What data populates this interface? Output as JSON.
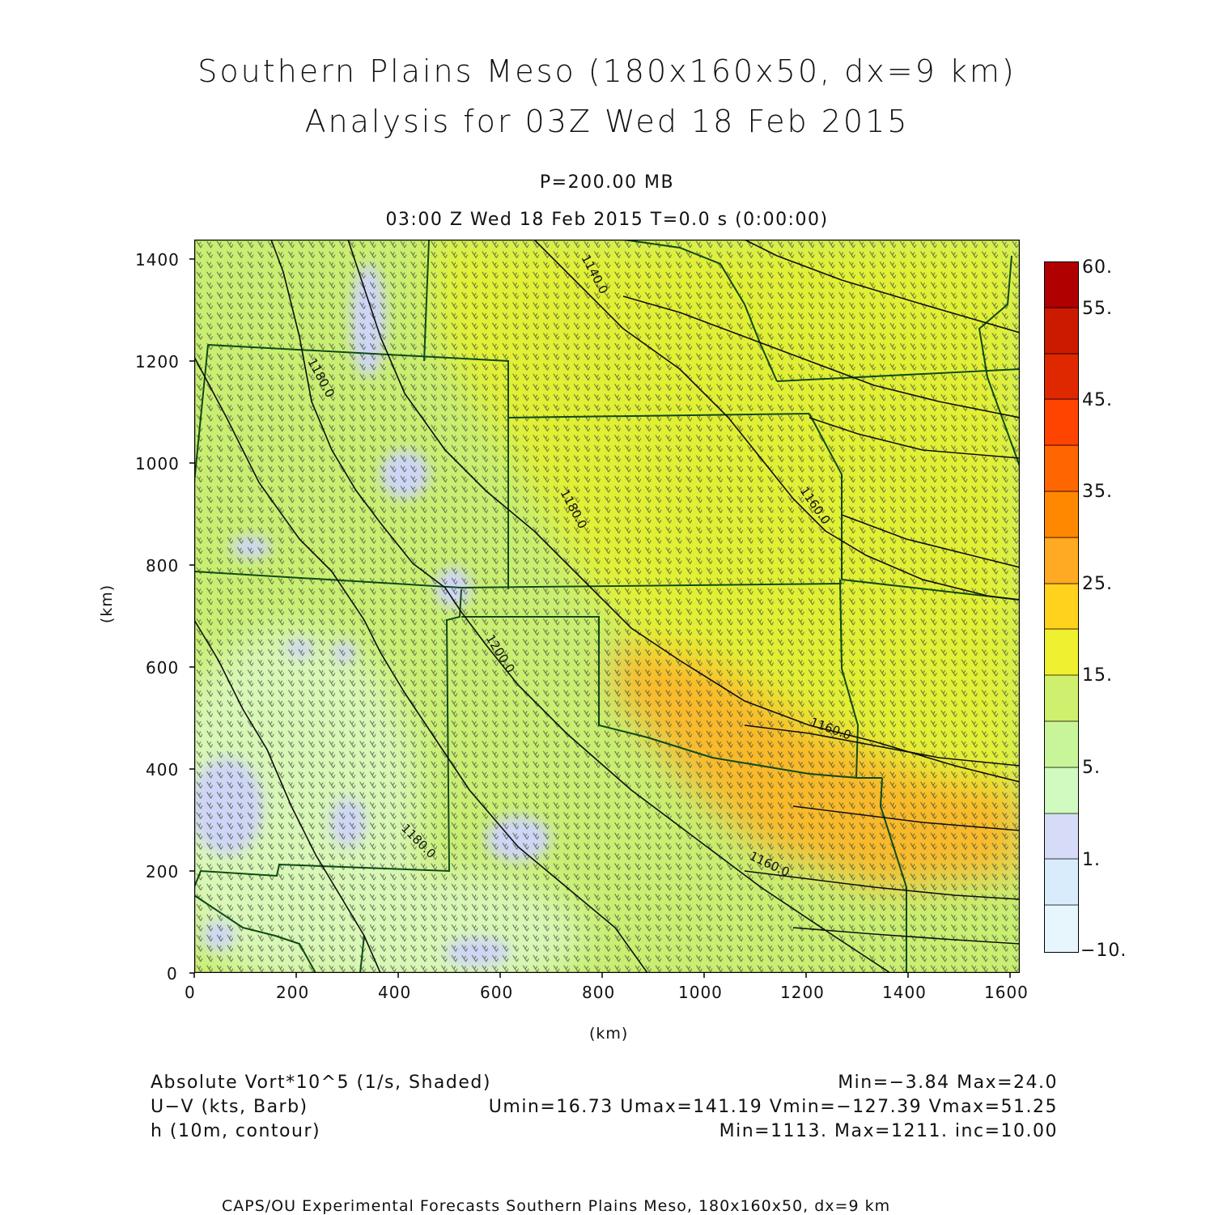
{
  "header": {
    "title_line1": "Southern Plains Meso (180x160x50, dx=9 km)",
    "title_line2": "Analysis for 03Z Wed 18 Feb 2015",
    "level": "P=200.00 MB",
    "time": "03:00 Z Wed 18 Feb 2015    T=0.0 s (0:00:00)"
  },
  "axes": {
    "x_label": "(km)",
    "y_label": "(km)",
    "x_ticks": [
      "0",
      "200",
      "400",
      "600",
      "800",
      "1000",
      "1200",
      "1400",
      "1600"
    ],
    "y_ticks": [
      "0",
      "200",
      "400",
      "600",
      "800",
      "1000",
      "1200",
      "1400"
    ],
    "x_range": [
      0,
      1620
    ],
    "y_range": [
      0,
      1440
    ]
  },
  "colorbar": {
    "labels": [
      "60.",
      "55.",
      "45.",
      "35.",
      "25.",
      "15.",
      "5.",
      "1.",
      "−10."
    ],
    "colors": [
      "#b00000",
      "#cc1a00",
      "#e02800",
      "#ff4400",
      "#ff6600",
      "#ff8800",
      "#ffaa22",
      "#ffd21e",
      "#eef030",
      "#cfef6e",
      "#c8f59a",
      "#d0fac0",
      "#d6dcf8",
      "#d8ecfc",
      "#e6f6fc"
    ]
  },
  "map": {
    "contour_labels": [
      "1140.0",
      "1180.0",
      "1160.0",
      "1180.0",
      "1200.0",
      "1160.0",
      "1180.0",
      "1160.0"
    ],
    "colors": {
      "base": "#c9ee72",
      "yellow": "#e2f035",
      "orange": "#f9b92c",
      "blue": "#cfd5f6",
      "pale": "#d9f7b7",
      "borders": "#0f4a17",
      "contours": "#101010",
      "barbs": "#3a4a3a"
    }
  },
  "legend": {
    "rows": [
      {
        "left": "Absolute Vort*10^5 (1/s, Shaded)",
        "right": "Min=−3.84 Max=24.0"
      },
      {
        "left": "U−V (kts, Barb)",
        "right": "Umin=16.73 Umax=141.19 Vmin=−127.39 Vmax=51.25"
      },
      {
        "left": "h (10m, contour)",
        "right": "Min=1113. Max=1211. inc=10.00"
      }
    ]
  },
  "footer": "CAPS/OU Experimental Forecasts  Southern Plains Meso, 180x160x50, dx=9 km"
}
